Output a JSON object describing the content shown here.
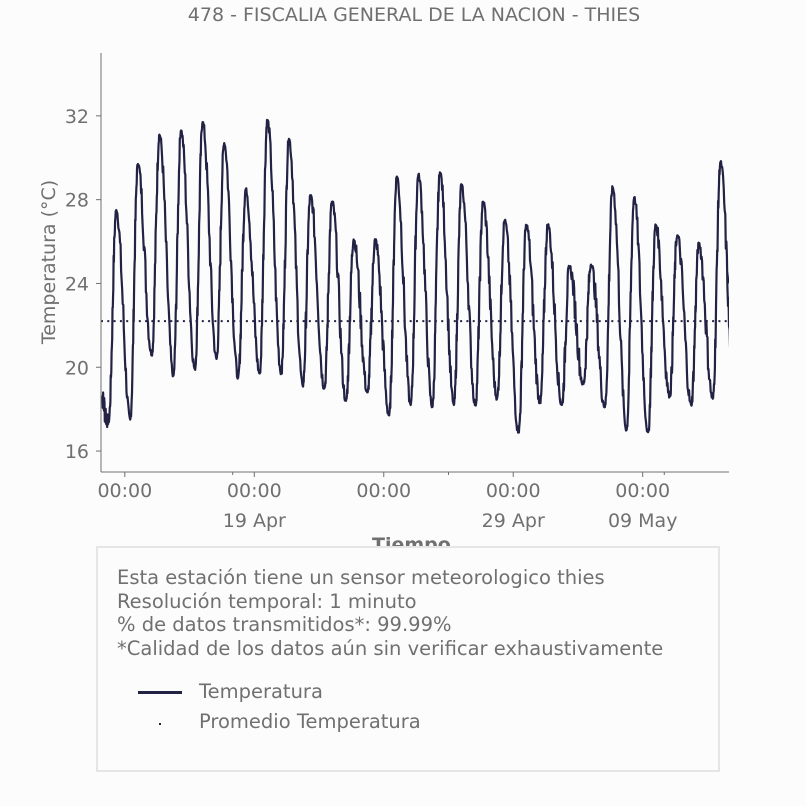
{
  "chart_data": {
    "type": "line",
    "title": "478 - FISCALIA GENERAL DE LA NACION - THIES",
    "xlabel": "Tiempo",
    "ylabel": "Temperatura (°C)",
    "ylim": [
      15,
      35
    ],
    "xlim": [
      "2021-04-12T21:30",
      "2021-05-12T00:00"
    ],
    "yticks": [
      16,
      20,
      24,
      28,
      32
    ],
    "xticks_major": [
      {
        "t": "2021-04-14T00:00",
        "label": "00:00",
        "sublabel": ""
      },
      {
        "t": "2021-04-20T00:00",
        "label": "00:00",
        "sublabel": "19 Apr"
      },
      {
        "t": "2021-04-26T00:00",
        "label": "00:00",
        "sublabel": ""
      },
      {
        "t": "2021-05-02T00:00",
        "label": "00:00",
        "sublabel": "29 Apr"
      },
      {
        "t": "2021-05-08T00:00",
        "label": "00:00",
        "sublabel": "09 May"
      }
    ],
    "xticks_minor": [
      "2021-04-19T00:00",
      "2021-04-29T00:00",
      "2021-05-09T00:00"
    ],
    "grid": false,
    "daily_extremes_start": "2021-04-13",
    "daily_extremes": [
      {
        "min": 17.4,
        "max": 27.5
      },
      {
        "min": 17.5,
        "max": 29.7
      },
      {
        "min": 20.6,
        "max": 31.1
      },
      {
        "min": 19.6,
        "max": 31.3
      },
      {
        "min": 19.9,
        "max": 31.7
      },
      {
        "min": 20.4,
        "max": 30.7
      },
      {
        "min": 19.5,
        "max": 28.5
      },
      {
        "min": 19.7,
        "max": 31.8
      },
      {
        "min": 19.7,
        "max": 30.9
      },
      {
        "min": 19.1,
        "max": 28.2
      },
      {
        "min": 19.0,
        "max": 27.9
      },
      {
        "min": 18.4,
        "max": 26.1
      },
      {
        "min": 18.8,
        "max": 26.1
      },
      {
        "min": 17.7,
        "max": 29.1
      },
      {
        "min": 18.2,
        "max": 29.2
      },
      {
        "min": 18.1,
        "max": 29.3
      },
      {
        "min": 18.2,
        "max": 28.7
      },
      {
        "min": 18.2,
        "max": 27.9
      },
      {
        "min": 18.5,
        "max": 27.0
      },
      {
        "min": 16.9,
        "max": 26.8
      },
      {
        "min": 18.3,
        "max": 26.8
      },
      {
        "min": 18.2,
        "max": 24.8
      },
      {
        "min": 19.2,
        "max": 24.9
      },
      {
        "min": 18.1,
        "max": 28.6
      },
      {
        "min": 17.0,
        "max": 28.1
      },
      {
        "min": 16.9,
        "max": 26.8
      },
      {
        "min": 18.6,
        "max": 26.3
      },
      {
        "min": 18.2,
        "max": 25.9
      },
      {
        "min": 18.5,
        "max": 29.8
      },
      {
        "min": 18.5,
        "max": 30.8
      }
    ],
    "series": [
      {
        "name": "Temperatura",
        "color": "#222244",
        "style": "solid"
      },
      {
        "name": "Promedio Temperatura",
        "color": "#222244",
        "style": "dotted",
        "value": 22.2
      }
    ]
  },
  "info": {
    "lines": [
      "Esta estación tiene un sensor meteorologico thies",
      "Resolución temporal: 1 minuto",
      "% de datos transmitidos*: 99.99%",
      "*Calidad de los datos aún sin verificar exhaustivamente"
    ]
  },
  "legend": {
    "temperatura": "Temperatura",
    "promedio": "Promedio Temperatura"
  },
  "colors": {
    "line": "#222244",
    "text": "#707070",
    "axis": "#707070",
    "box_border": "#e6e6e6"
  }
}
